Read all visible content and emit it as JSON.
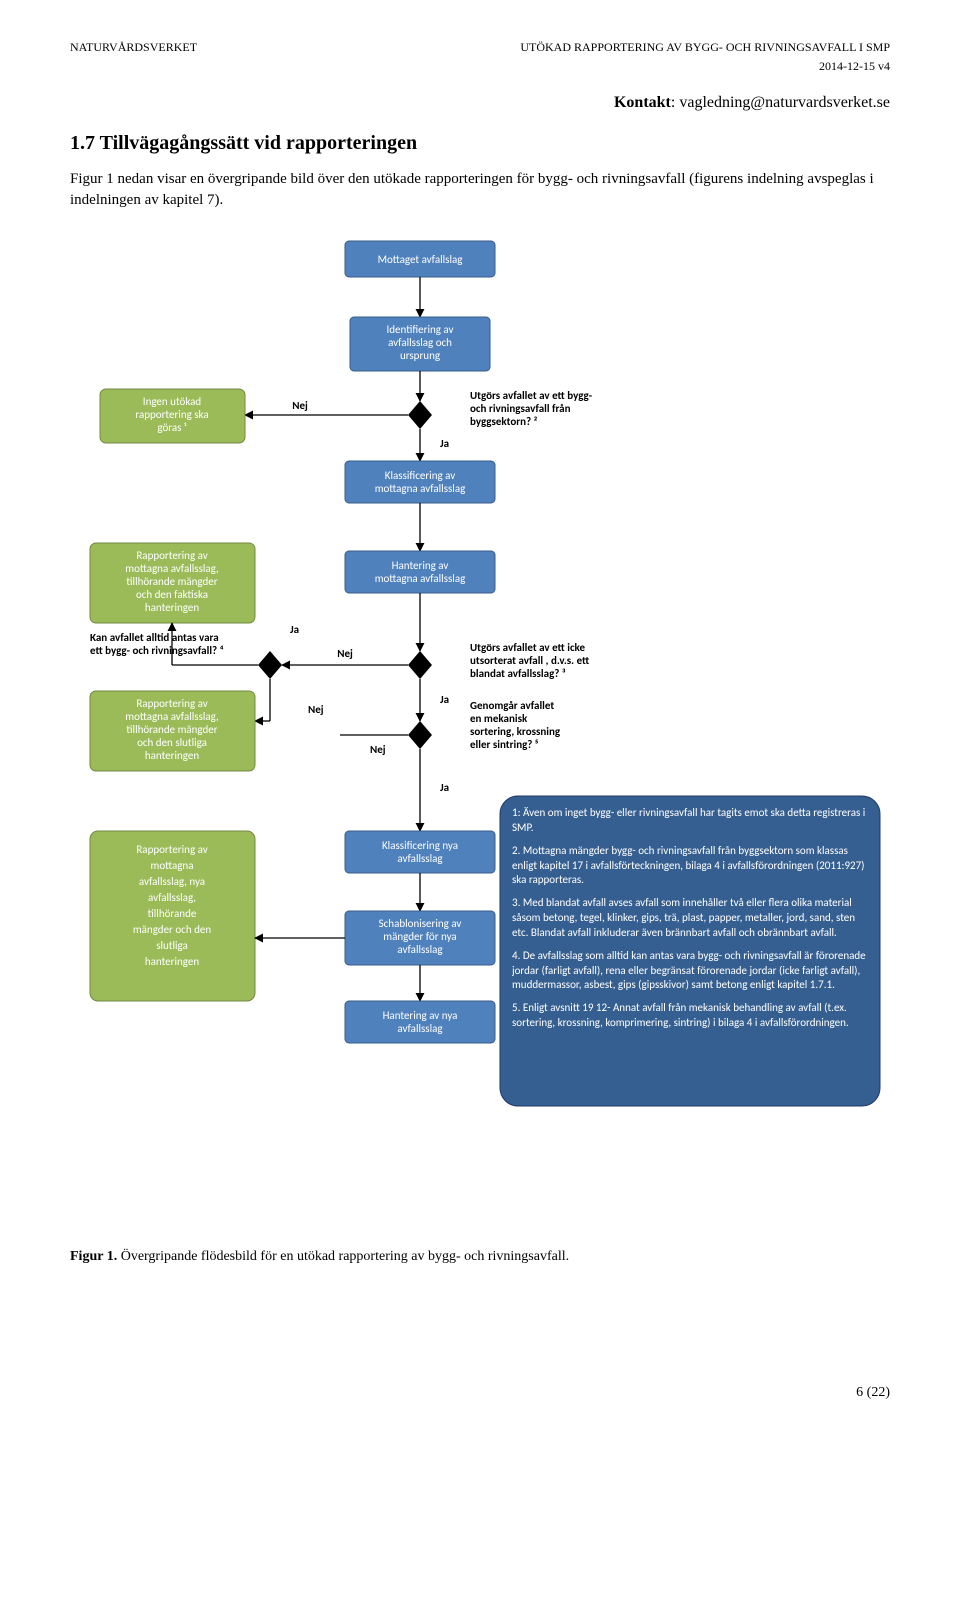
{
  "header": {
    "left": "NATURVÅRDSVERKET",
    "right": "UTÖKAD RAPPORTERING AV BYGG- OCH RIVNINGSAVFALL I SMP",
    "date": "2014-12-15  v4"
  },
  "contact_label": "Kontakt",
  "contact_value": ": vagledning@naturvardsverket.se",
  "section_title": "1.7 Tillvägagångssätt vid rapporteringen",
  "body_text": "Figur 1 nedan visar en övergripande bild över den utökade rapporteringen för bygg- och rivningsavfall (figurens indelning avspeglas i indelningen av kapitel 7).",
  "caption_bold": "Figur 1.",
  "caption_rest": " Övergripande flödesbild för en utökad rapportering av bygg- och rivningsavfall.",
  "page_num": "6 (22)",
  "flow": {
    "n_mottaget": [
      "Mottaget avfallslag"
    ],
    "n_ident": [
      "Identifiering av",
      "avfallsslag och",
      "ursprung"
    ],
    "n_klass1": [
      "Klassificering av",
      "mottagna avfallsslag"
    ],
    "n_hant1": [
      "Hantering av",
      "mottagna avfallsslag"
    ],
    "n_klass2": [
      "Klassificering nya",
      "avfallsslag"
    ],
    "n_schab": [
      "Schablonisering av",
      "mängder för nya",
      "avfallsslag"
    ],
    "n_hant2": [
      "Hantering av nya",
      "avfallsslag"
    ],
    "g_ingen": [
      "Ingen utökad",
      "rapportering ska",
      "göras ¹"
    ],
    "g_rapp1": [
      "Rapportering  av",
      "mottagna avfallsslag,",
      "tillhörande mängder",
      "och den faktiska",
      "hanteringen"
    ],
    "g_rapp2": [
      "Rapportering  av",
      "mottagna avfallsslag,",
      "tillhörande mängder",
      "och den slutliga",
      "hanteringen"
    ],
    "g_rapp3": [
      "Rapportering av",
      "mottagna",
      "avfallsslag, nya",
      "avfallsslag,",
      "tillhörande",
      "mängder och den",
      "slutliga",
      "hanteringen"
    ],
    "q1": [
      "Utgörs avfallet av ett bygg-",
      "och rivningsavfall från",
      "byggsektorn? ²"
    ],
    "q2a": [
      "Kan avfallet alltid antas vara",
      "ett bygg- och rivningsavfall? ⁴"
    ],
    "q2b": [
      "Utgörs avfallet av ett icke",
      "utsorterat avfall , d.v.s. ett",
      "blandat avfallsslag? ³"
    ],
    "q3": [
      "Genomgår avfallet",
      "en mekanisk",
      "sortering, krossning",
      "eller sintring? ⁵"
    ],
    "nej": "Nej",
    "ja": "Ja",
    "notes": [
      "1: Även om inget bygg- eller rivningsavfall har tagits emot ska detta registreras i SMP.",
      "2. Mottagna mängder bygg- och rivningsavfall från byggsektorn som klassas enligt kapitel 17 i avfallsförteckningen, bilaga 4 i avfallsförordningen (2011:927) ska rapporteras.",
      "3. Med blandat avfall avses  avfall som innehåller två eller flera olika material såsom betong, tegel, klinker, gips, trä, plast, papper, metaller, jord, sand, sten etc. Blandat avfall inkluderar  även brännbart avfall och obrännbart avfall.",
      "4. De avfallsslag som alltid kan antas  vara bygg- och rivningsavfall är förorenade jordar (farligt avfall), rena eller begränsat förorenade jordar (icke farligt avfall), muddermassor, asbest, gips (gipsskivor) samt betong enligt kapitel 1.7.1.",
      "5. Enligt avsnitt 19 12- Annat avfall från mekanisk behandling av avfall (t.ex. sortering, krossning, komprimering, sintring) i bilaga 4 i avfallsförordningen."
    ]
  }
}
